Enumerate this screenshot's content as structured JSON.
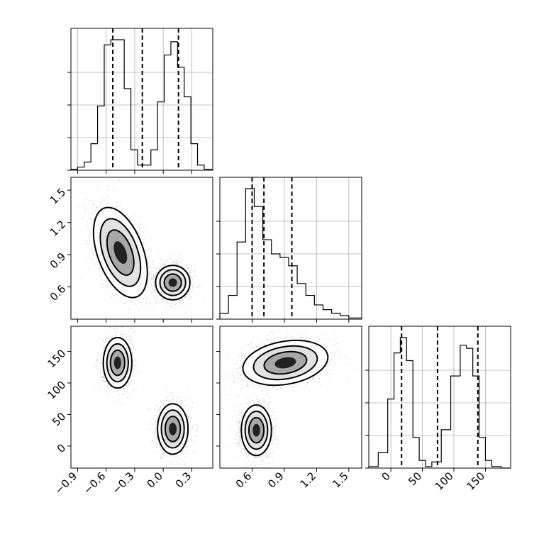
{
  "chart_data": {
    "type": "corner",
    "parameters": [
      {
        "name": "",
        "range": [
          -0.97,
          0.52
        ],
        "tick_values": [
          -0.9,
          -0.6,
          -0.3,
          0.0,
          0.3
        ],
        "tick_labels": [
          "−0.9",
          "−0.6",
          "−0.3",
          "0.0",
          "0.3"
        ],
        "quantiles": [
          -0.53,
          -0.22,
          0.16
        ],
        "histogram": {
          "bin_edges": [
            -0.97,
            -0.9,
            -0.83,
            -0.76,
            -0.69,
            -0.62,
            -0.55,
            -0.48,
            -0.41,
            -0.34,
            -0.27,
            -0.2,
            -0.13,
            -0.06,
            0.01,
            0.08,
            0.15,
            0.22,
            0.29,
            0.36,
            0.43,
            0.52
          ],
          "counts": [
            1,
            3,
            8,
            26,
            63,
            123,
            128,
            128,
            80,
            20,
            5,
            5,
            20,
            67,
            113,
            126,
            101,
            72,
            26,
            5,
            1
          ]
        }
      },
      {
        "name": "",
        "range": [
          0.3,
          1.62
        ],
        "tick_values": [
          0.6,
          0.9,
          1.2,
          1.5
        ],
        "tick_labels": [
          "0.6",
          "0.9",
          "1.2",
          "1.5"
        ],
        "quantiles": [
          0.6,
          0.71,
          0.97
        ],
        "histogram": {
          "bin_edges": [
            0.3,
            0.38,
            0.46,
            0.54,
            0.62,
            0.7,
            0.78,
            0.86,
            0.94,
            1.02,
            1.1,
            1.18,
            1.26,
            1.34,
            1.42,
            1.5,
            1.62
          ],
          "counts": [
            5,
            20,
            65,
            110,
            95,
            67,
            55,
            52,
            45,
            30,
            20,
            12,
            8,
            5,
            3,
            1
          ]
        }
      },
      {
        "name": "",
        "range": [
          -35,
          190
        ],
        "tick_values": [
          0,
          50,
          100,
          150
        ],
        "tick_labels": [
          "0",
          "50",
          "100",
          "150"
        ],
        "quantiles": [
          17,
          74,
          138
        ],
        "histogram": {
          "bin_edges": [
            -35,
            -20,
            -5,
            5,
            15,
            25,
            35,
            45,
            55,
            65,
            80,
            95,
            110,
            120,
            130,
            140,
            150,
            160,
            175,
            190
          ],
          "counts": [
            1,
            10,
            45,
            75,
            85,
            70,
            20,
            5,
            1,
            4,
            25,
            60,
            80,
            78,
            60,
            20,
            5,
            1,
            0
          ]
        }
      }
    ],
    "pairs": [
      {
        "x_param": 0,
        "y_param": 1,
        "clusters": [
          {
            "cx": -0.45,
            "cy": 0.92,
            "sx": 0.12,
            "sy": 0.22,
            "rotation_deg": 20,
            "n": 2000
          },
          {
            "cx": 0.1,
            "cy": 0.64,
            "sx": 0.09,
            "sy": 0.08,
            "rotation_deg": 0,
            "n": 2000
          }
        ]
      },
      {
        "x_param": 0,
        "y_param": 2,
        "clusters": [
          {
            "cx": -0.48,
            "cy": 132,
            "sx": 0.075,
            "sy": 20,
            "rotation_deg": 0,
            "n": 2000
          },
          {
            "cx": 0.1,
            "cy": 27,
            "sx": 0.08,
            "sy": 20,
            "rotation_deg": 0,
            "n": 2000
          }
        ]
      },
      {
        "x_param": 1,
        "y_param": 2,
        "clusters": [
          {
            "cx": 0.91,
            "cy": 132,
            "sx": 0.2,
            "sy": 17,
            "rotation_deg": 10,
            "n": 2000
          },
          {
            "cx": 0.64,
            "cy": 25,
            "sx": 0.07,
            "sy": 20,
            "rotation_deg": 0,
            "n": 2000
          }
        ]
      }
    ],
    "contour_levels_sigma": [
      0.5,
      1.0,
      1.5,
      2.0
    ],
    "grid": true
  }
}
